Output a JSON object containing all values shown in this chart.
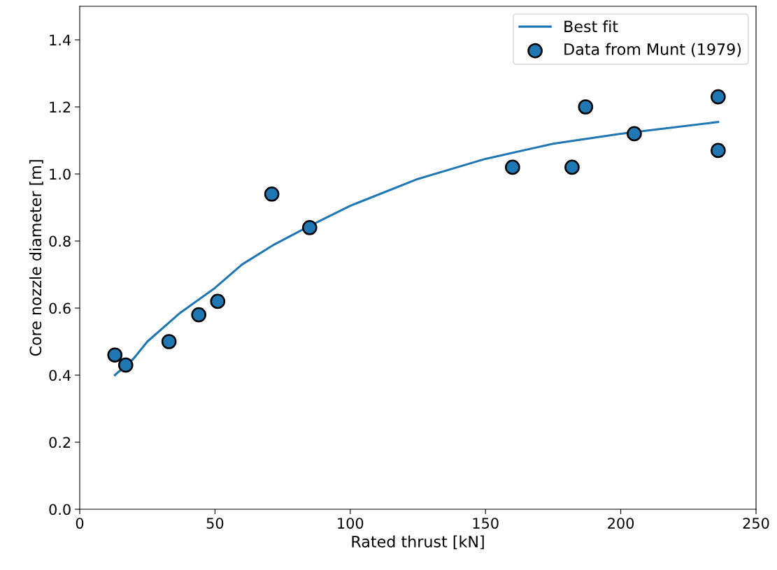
{
  "chart_data": {
    "type": "scatter",
    "xlabel": "Rated thrust [kN]",
    "ylabel": "Core nozzle diameter [m]",
    "xlim": [
      0,
      250
    ],
    "xticks": [
      0,
      50,
      100,
      150,
      200,
      250
    ],
    "ylim": [
      0,
      1.5
    ],
    "yticks": [
      {
        "value": 0,
        "label": "0.0"
      },
      0.2,
      0.4,
      0.6,
      0.8,
      {
        "value": 1,
        "label": "1.0"
      },
      1.2,
      1.4
    ],
    "grid": false,
    "legend": "top right",
    "series": [
      {
        "name": "Best fit",
        "type": "line",
        "color": "#1f77b4",
        "line_style": "solid",
        "marker": "none",
        "x": [
          13,
          20,
          25,
          37,
          50,
          60,
          72,
          85,
          100,
          125,
          150,
          175,
          200,
          236
        ],
        "values": [
          0.4,
          0.45,
          0.5,
          0.585,
          0.66,
          0.73,
          0.79,
          0.845,
          0.905,
          0.985,
          1.045,
          1.09,
          1.12,
          1.155
        ]
      },
      {
        "name": "Data from Munt (1979)",
        "color": "#1f77b4",
        "marker": "circle",
        "x": [
          13,
          17,
          33,
          44,
          51,
          71,
          85,
          160,
          182,
          187,
          205,
          236,
          236
        ],
        "values": [
          0.46,
          0.43,
          0.5,
          0.58,
          0.62,
          0.94,
          0.84,
          1.02,
          1.02,
          1.2,
          1.12,
          1.23,
          1.07
        ]
      }
    ]
  }
}
